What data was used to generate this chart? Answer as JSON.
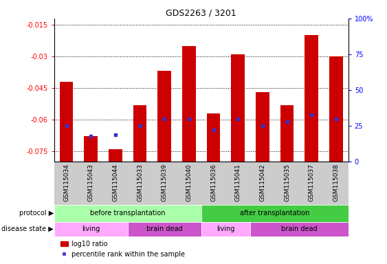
{
  "title": "GDS2263 / 3201",
  "samples": [
    "GSM115034",
    "GSM115043",
    "GSM115044",
    "GSM115033",
    "GSM115039",
    "GSM115040",
    "GSM115036",
    "GSM115041",
    "GSM115042",
    "GSM115035",
    "GSM115037",
    "GSM115038"
  ],
  "log10_ratio": [
    -0.042,
    -0.068,
    -0.074,
    -0.053,
    -0.037,
    -0.025,
    -0.057,
    -0.029,
    -0.047,
    -0.053,
    -0.02,
    -0.03
  ],
  "percentile_rank": [
    25,
    18,
    19,
    25,
    30,
    30,
    22,
    30,
    25,
    28,
    33,
    30
  ],
  "ylim_left": [
    -0.08,
    -0.012
  ],
  "yticks_left": [
    -0.015,
    -0.03,
    -0.045,
    -0.06,
    -0.075
  ],
  "yticks_right": [
    0,
    25,
    50,
    75,
    100
  ],
  "bar_color": "#cc0000",
  "blue_color": "#3333cc",
  "protocol_groups": [
    {
      "label": "before transplantation",
      "start": 0,
      "end": 6,
      "color": "#aaffaa"
    },
    {
      "label": "after transplantation",
      "start": 6,
      "end": 12,
      "color": "#44cc44"
    }
  ],
  "disease_groups": [
    {
      "label": "living",
      "start": 0,
      "end": 3,
      "color": "#ffaaff"
    },
    {
      "label": "brain dead",
      "start": 3,
      "end": 6,
      "color": "#cc55cc"
    },
    {
      "label": "living",
      "start": 6,
      "end": 8,
      "color": "#ffaaff"
    },
    {
      "label": "brain dead",
      "start": 8,
      "end": 12,
      "color": "#cc55cc"
    }
  ],
  "protocol_label": "protocol",
  "disease_label": "disease state",
  "legend_log10": "log10 ratio",
  "legend_pct": "percentile rank within the sample",
  "xticklabel_bg": "#cccccc",
  "plot_bg_color": "#ffffff"
}
